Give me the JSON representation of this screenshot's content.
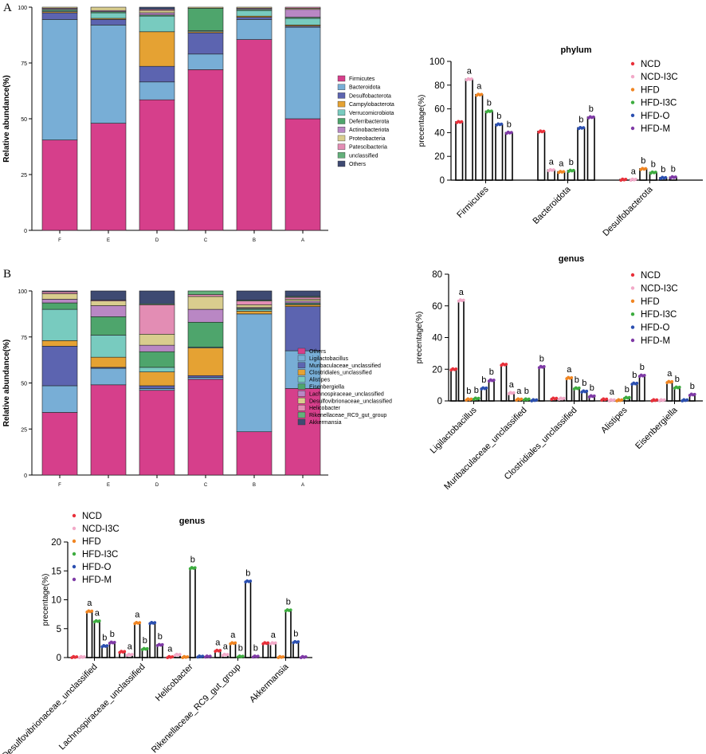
{
  "panels": [
    {
      "letter": "A"
    },
    {
      "letter": "B"
    }
  ],
  "chart_data": [
    {
      "id": "A-stacked",
      "type": "bar",
      "stacked": true,
      "title": "",
      "ylabel": "Relative abundance(%)",
      "xlabel": "",
      "ylim": [
        0,
        100
      ],
      "yticks": [
        0,
        25,
        50,
        75,
        100
      ],
      "categories": [
        "F",
        "E",
        "D",
        "C",
        "B",
        "A"
      ],
      "legend_position": "right",
      "series": [
        {
          "name": "Firmicutes",
          "color": "#d63f8b",
          "values": [
            40.5,
            48,
            58.5,
            72,
            85.5,
            50
          ]
        },
        {
          "name": "Bacteroidota",
          "color": "#78aed6",
          "values": [
            54,
            44,
            8,
            7,
            9,
            41
          ]
        },
        {
          "name": "Desulfobacterota",
          "color": "#5c64b0",
          "values": [
            3,
            2.5,
            7,
            9.5,
            1,
            0.5
          ]
        },
        {
          "name": "Campylobacterota",
          "color": "#e5a233",
          "values": [
            0.5,
            0.5,
            15.5,
            0.5,
            0.5,
            0.5
          ]
        },
        {
          "name": "Verrucomicrobiota",
          "color": "#78cbbf",
          "values": [
            0.5,
            2.5,
            7,
            0.5,
            2.5,
            3
          ]
        },
        {
          "name": "Deferribacterota",
          "color": "#4ea56c",
          "values": [
            0.5,
            0.5,
            0.5,
            10,
            0.5,
            0.5
          ]
        },
        {
          "name": "Actinobacteriota",
          "color": "#b987c4",
          "values": [
            0.5,
            0.5,
            1,
            0,
            0.5,
            3.5
          ]
        },
        {
          "name": "Proteobacteria",
          "color": "#d9cd8e",
          "values": [
            0.5,
            1.5,
            1,
            0.5,
            0.5,
            0.5
          ]
        },
        {
          "name": "Patescibacteria",
          "color": "#e38db4",
          "values": [
            0,
            0,
            0.5,
            0,
            0,
            0.5
          ]
        },
        {
          "name": "unclassified",
          "color": "#63b07a",
          "values": [
            0,
            0,
            0,
            0,
            0,
            0
          ]
        },
        {
          "name": "Others",
          "color": "#3e4a72",
          "values": [
            0,
            0,
            0,
            0,
            0,
            0
          ]
        }
      ]
    },
    {
      "id": "A-phylum",
      "type": "bar",
      "title": "phylum",
      "ylabel": "precentage(%)",
      "ylim": [
        0,
        100
      ],
      "yticks": [
        0,
        20,
        40,
        60,
        80,
        100
      ],
      "categories": [
        "Firmicutes",
        "Bacteroidota",
        "Desulfobacterota"
      ],
      "groups": [
        "NCD",
        "NCD-I3C",
        "HFD",
        "HFD-I3C",
        "HFD-O",
        "HFD-M"
      ],
      "group_colors": [
        "#e8303a",
        "#f2a9c8",
        "#f08522",
        "#3dac3f",
        "#2b4fb0",
        "#7f3aa6"
      ],
      "values": [
        [
          49,
          85,
          72,
          58,
          47,
          40
        ],
        [
          41,
          8.5,
          7,
          8,
          44,
          53
        ],
        [
          0.5,
          0.5,
          9.5,
          6.5,
          2,
          2.5
        ]
      ],
      "letters": [
        [
          "",
          "a",
          "a",
          "b",
          "b",
          "b"
        ],
        [
          "",
          "a",
          "a",
          "b",
          "b",
          "b"
        ],
        [
          "",
          "a",
          "b",
          "b",
          "b",
          "b"
        ]
      ]
    },
    {
      "id": "B-stacked",
      "type": "bar",
      "stacked": true,
      "title": "",
      "ylabel": "Relative abundance(%)",
      "ylim": [
        0,
        100
      ],
      "yticks": [
        0,
        25,
        50,
        75,
        100
      ],
      "categories": [
        "F",
        "E",
        "D",
        "C",
        "B",
        "A"
      ],
      "legend_position": "right",
      "series": [
        {
          "name": "Others",
          "color": "#d63f8b",
          "values": [
            34,
            49,
            46,
            52,
            23.5,
            47
          ]
        },
        {
          "name": "Ligilactobacillus",
          "color": "#78aed6",
          "values": [
            14.5,
            9,
            1,
            1,
            64,
            20.5
          ]
        },
        {
          "name": "Muribaculaceae_unclassified",
          "color": "#5c64b0",
          "values": [
            21.5,
            0.5,
            1.5,
            1,
            0,
            24
          ]
        },
        {
          "name": "Clostridiales_unclassified",
          "color": "#e5a233",
          "values": [
            3,
            5.5,
            7.5,
            15,
            1.5,
            1
          ]
        },
        {
          "name": "Alistipes",
          "color": "#78cbbf",
          "values": [
            17,
            12,
            2.5,
            0.5,
            1,
            0.5
          ]
        },
        {
          "name": "Eisenbergiella",
          "color": "#4ea56c",
          "values": [
            3.5,
            10,
            8.5,
            13.5,
            0.5,
            0.5
          ]
        },
        {
          "name": "Lachnospiraceae_unclassified",
          "color": "#b987c4",
          "values": [
            2,
            6,
            3.5,
            7,
            0.5,
            1
          ]
        },
        {
          "name": "Desulfovibrionaceae_unclassified",
          "color": "#d9cd8e",
          "values": [
            3,
            2.5,
            6,
            7,
            1.5,
            1
          ]
        },
        {
          "name": "Helicobacter",
          "color": "#e38db4",
          "values": [
            1,
            0.5,
            16,
            1,
            2,
            1
          ]
        },
        {
          "name": "Rikenellaceae_RC9_gut_group",
          "color": "#63b07a",
          "values": [
            0,
            0,
            0.5,
            2,
            0.5,
            0.5
          ]
        },
        {
          "name": "Akkermansia",
          "color": "#3e4a72",
          "values": [
            0.5,
            5,
            7,
            0,
            5,
            3
          ]
        }
      ]
    },
    {
      "id": "B-genus-1",
      "type": "bar",
      "title": "genus",
      "ylabel": "precentage(%)",
      "ylim": [
        0,
        80
      ],
      "yticks": [
        0,
        20,
        40,
        60,
        80
      ],
      "categories": [
        "Ligilactobacillus",
        "Muribaculaceae_unclassified",
        "Clostridiales_unclassified",
        "Alistipes",
        "Eisenbergiella"
      ],
      "groups": [
        "NCD",
        "NCD-I3C",
        "HFD",
        "HFD-I3C",
        "HFD-O",
        "HFD-M"
      ],
      "group_colors": [
        "#e8303a",
        "#f2a9c8",
        "#f08522",
        "#3dac3f",
        "#2b4fb0",
        "#7f3aa6"
      ],
      "values": [
        [
          20,
          63.5,
          1,
          1.5,
          8,
          13
        ],
        [
          23,
          5,
          1,
          1,
          0.5,
          21.5
        ],
        [
          1.5,
          1.5,
          14.5,
          8,
          6,
          3
        ],
        [
          1,
          0.5,
          0.5,
          2,
          11,
          16
        ],
        [
          0.5,
          0.5,
          12,
          8.5,
          0.5,
          4
        ]
      ],
      "letters": [
        [
          "",
          "a",
          "b",
          "b",
          "b",
          "b"
        ],
        [
          "",
          "a",
          "a",
          "b",
          "",
          "b"
        ],
        [
          "",
          "",
          "a",
          "b",
          "b",
          "b"
        ],
        [
          "",
          "a",
          "",
          "b",
          "b",
          "b"
        ],
        [
          "",
          "",
          "a",
          "b",
          "",
          "b"
        ]
      ]
    },
    {
      "id": "B-genus-2",
      "type": "bar",
      "title": "genus",
      "ylabel": "precentage(%)",
      "ylim": [
        0,
        20
      ],
      "yticks": [
        0,
        5,
        10,
        15,
        20
      ],
      "categories": [
        "Desulfovibrionaceae_unclassified",
        "Lachnospiraceae_unclassified",
        "Helicobacter",
        "Rikenellaceae_RC9_gut_group",
        "Akkermansia"
      ],
      "groups": [
        "NCD",
        "NCD-I3C",
        "HFD",
        "HFD-I3C",
        "HFD-O",
        "HFD-M"
      ],
      "group_colors": [
        "#e8303a",
        "#f2a9c8",
        "#f08522",
        "#3dac3f",
        "#2b4fb0",
        "#7f3aa6"
      ],
      "values": [
        [
          0.1,
          0.1,
          8,
          6.3,
          2,
          2.6
        ],
        [
          1,
          0.5,
          6,
          1.5,
          6,
          2.2
        ],
        [
          0.1,
          0.5,
          0.1,
          15.5,
          0.2,
          0.2
        ],
        [
          1.2,
          0.5,
          2.5,
          0.2,
          13.2,
          0.2
        ],
        [
          2.5,
          2.5,
          0.1,
          8.2,
          2.7,
          0.1
        ]
      ],
      "letters": [
        [
          "",
          "",
          "a",
          "a",
          "b",
          "b"
        ],
        [
          "",
          "a",
          "a",
          "b",
          "",
          "b"
        ],
        [
          "a",
          "",
          "",
          "b",
          "",
          ""
        ],
        [
          "a",
          "a",
          "a",
          "b",
          "b",
          "b"
        ],
        [
          "",
          "a",
          "",
          "b",
          "b",
          ""
        ]
      ]
    }
  ]
}
